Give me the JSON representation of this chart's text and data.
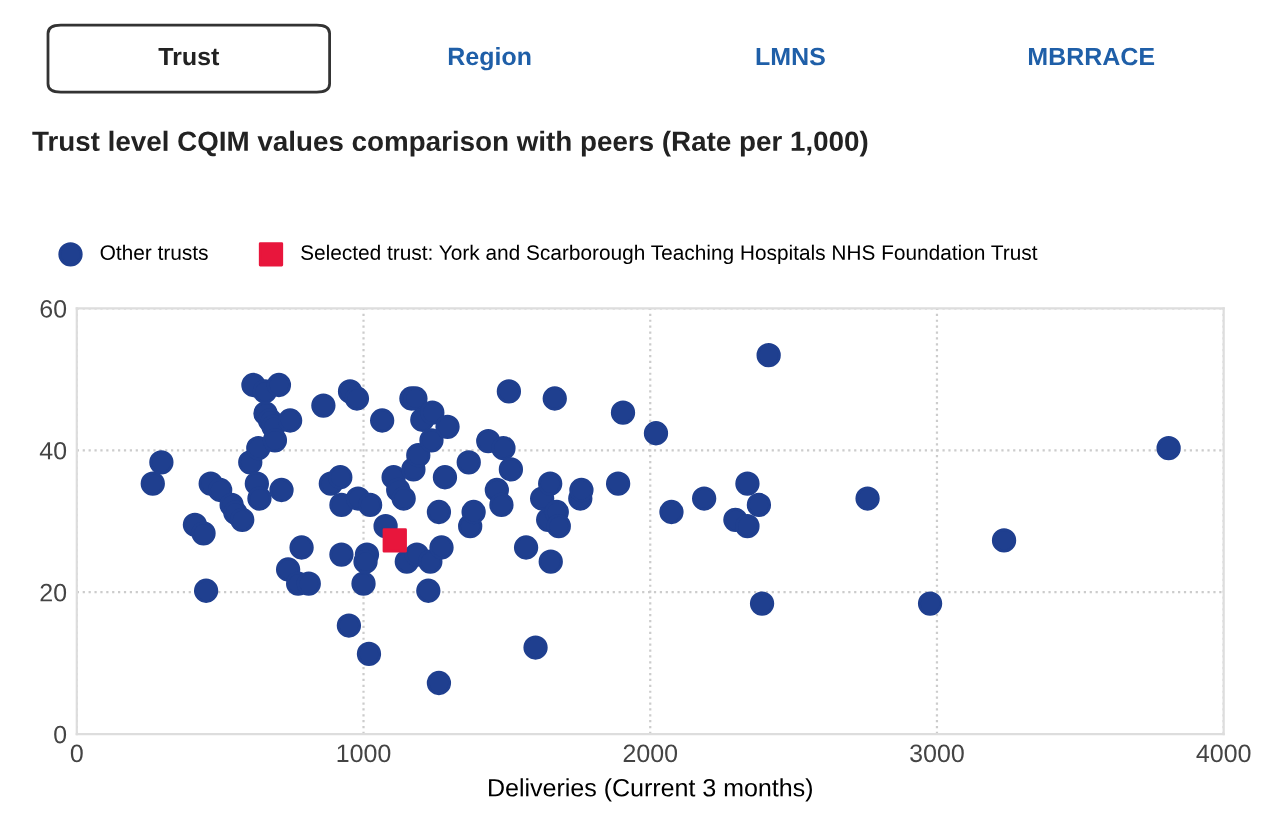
{
  "chart_data": {
    "type": "scatter",
    "title": "Trust level CQIM values comparison with peers (Rate per 1,000)",
    "xlabel": "Deliveries (Current 3 months)",
    "annotations": [
      "Trust",
      "Region",
      "LMNS",
      "MBRRACE"
    ],
    "xlim": [
      0,
      4000
    ],
    "xticks": [
      0,
      1000,
      2000,
      3000,
      4000
    ],
    "ylim": [
      0,
      60
    ],
    "yticks": [
      0,
      20,
      40,
      60
    ],
    "grid": true,
    "legend": "top left",
    "series": [
      {
        "name": "Other trusts",
        "color": "#1f3f8f",
        "marker": "circle",
        "x": [
          265,
          295,
          412,
          442,
          451,
          467,
          500,
          540,
          553,
          577,
          605,
          616,
          628,
          637,
          633,
          656,
          658,
          674,
          686,
          691,
          705,
          714,
          744,
          737,
          772,
          784,
          809,
          860,
          886,
          919,
          923,
          923,
          953,
          977,
          981,
          1000,
          1012,
          1007,
          1023,
          949,
          1019,
          1065,
          1077,
          1105,
          1121,
          1140,
          1151,
          1167,
          1181,
          1174,
          1191,
          1205,
          1240,
          1237,
          1186,
          1233,
          1226,
          1263,
          1272,
          1284,
          1293,
          1263,
          1367,
          1372,
          1384,
          1435,
          1465,
          1481,
          1488,
          1514,
          1507,
          1567,
          1600,
          1623,
          1651,
          1644,
          1653,
          1674,
          1681,
          1667,
          1756,
          1760,
          1888,
          1905,
          2020,
          2413,
          2074,
          2188,
          2339,
          2297,
          2339,
          2379,
          2390,
          2758,
          2976,
          3234,
          3808
        ],
        "values": [
          35.3,
          38.3,
          29.5,
          28.3,
          20.2,
          35.3,
          34.4,
          32.3,
          31.2,
          30.2,
          38.3,
          49.2,
          35.3,
          33.2,
          40.3,
          48.3,
          45.2,
          44.2,
          43.3,
          41.4,
          49.2,
          34.4,
          44.2,
          23.2,
          21.2,
          26.3,
          21.2,
          46.3,
          35.3,
          36.2,
          32.3,
          25.3,
          48.3,
          47.3,
          33.2,
          21.2,
          25.3,
          24.3,
          32.3,
          15.3,
          11.3,
          44.2,
          29.3,
          36.2,
          34.4,
          33.2,
          24.3,
          47.3,
          47.3,
          37.3,
          39.3,
          44.3,
          45.3,
          41.4,
          25.3,
          24.3,
          20.2,
          31.3,
          26.3,
          36.2,
          43.3,
          7.2,
          38.3,
          29.3,
          31.3,
          41.3,
          34.4,
          32.3,
          40.3,
          37.3,
          48.3,
          26.3,
          12.2,
          33.2,
          35.3,
          30.2,
          24.3,
          31.3,
          29.3,
          47.3,
          33.2,
          34.4,
          35.3,
          45.3,
          42.4,
          53.4,
          31.3,
          33.2,
          35.3,
          30.2,
          29.3,
          32.3,
          18.4,
          33.2,
          18.4,
          27.3,
          40.3
        ]
      },
      {
        "name": "Selected trust: York and Scarborough Teaching Hospitals NHS Foundation Trust",
        "color": "#e8163c",
        "marker": "square",
        "x": [
          1109
        ],
        "values": [
          27.3
        ]
      }
    ]
  }
}
